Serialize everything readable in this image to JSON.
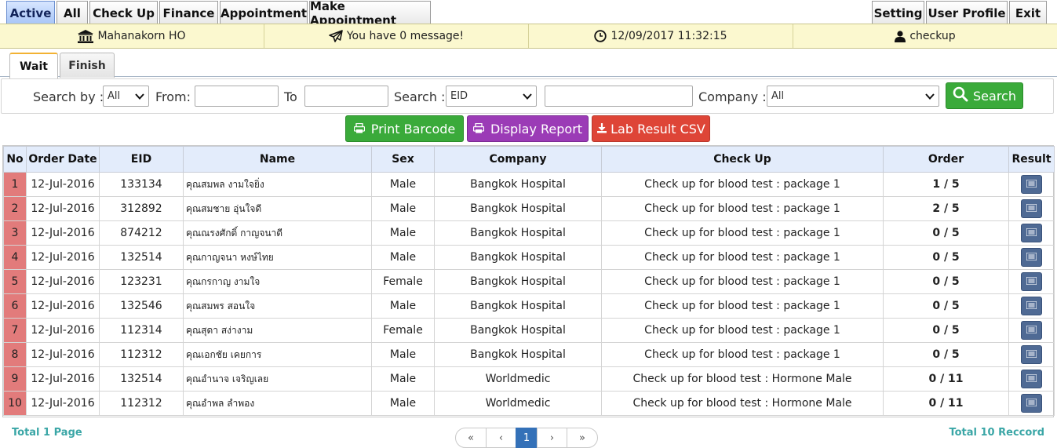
{
  "topnav": {
    "left": [
      "Active",
      "All",
      "Check Up",
      "Finance",
      "Appointment",
      "Make Appointment"
    ],
    "right": [
      "Setting",
      "User Profile",
      "Exit"
    ]
  },
  "infobar": {
    "branch": "Mahanakorn HO",
    "message": "You have 0 message!",
    "datetime": "12/09/2017 11:32:15",
    "user": "checkup"
  },
  "subtabs": [
    "Wait",
    "Finish"
  ],
  "search": {
    "search_by_label": "Search by :",
    "search_by_value": "All",
    "from_label": "From:",
    "from_value": "",
    "to_label": "To",
    "to_value": "",
    "search_label": "Search :",
    "search_field_value": "EID",
    "search_text_value": "",
    "company_label": "Company :",
    "company_value": "All",
    "button_label": "Search"
  },
  "actions": {
    "print_barcode": "Print Barcode",
    "display_report": "Display Report",
    "lab_result_csv": "Lab Result CSV"
  },
  "table": {
    "headers": [
      "No",
      "Order Date",
      "EID",
      "Name",
      "Sex",
      "Company",
      "Check Up",
      "Order",
      "Result"
    ],
    "rows": [
      {
        "no": "1",
        "date": "12-Jul-2016",
        "eid": "133134",
        "name": "คุณสมพล งามใจยิ่ง",
        "sex": "Male",
        "company": "Bangkok Hospital",
        "checkup": "Check up for blood test : package 1",
        "order": "1 / 5"
      },
      {
        "no": "2",
        "date": "12-Jul-2016",
        "eid": "312892",
        "name": "คุณสมชาย อุ่นใจดี",
        "sex": "Male",
        "company": "Bangkok Hospital",
        "checkup": "Check up for blood test : package 1",
        "order": "2 / 5"
      },
      {
        "no": "3",
        "date": "12-Jul-2016",
        "eid": "874212",
        "name": "คุณณรงศักดิ์ กาญจนาดี",
        "sex": "Male",
        "company": "Bangkok Hospital",
        "checkup": "Check up for blood test : package 1",
        "order": "0 / 5"
      },
      {
        "no": "4",
        "date": "12-Jul-2016",
        "eid": "132514",
        "name": "คุณกาญจนา หงษ์ไทย",
        "sex": "Male",
        "company": "Bangkok Hospital",
        "checkup": "Check up for blood test : package 1",
        "order": "0 / 5"
      },
      {
        "no": "5",
        "date": "12-Jul-2016",
        "eid": "123231",
        "name": "คุณกรกาญ งามใจ",
        "sex": "Female",
        "company": "Bangkok Hospital",
        "checkup": "Check up for blood test : package 1",
        "order": "0 / 5"
      },
      {
        "no": "6",
        "date": "12-Jul-2016",
        "eid": "132546",
        "name": "คุณสมพร สอนใจ",
        "sex": "Male",
        "company": "Bangkok Hospital",
        "checkup": "Check up for blood test : package 1",
        "order": "0 / 5"
      },
      {
        "no": "7",
        "date": "12-Jul-2016",
        "eid": "112314",
        "name": "คุณสุดา สง่างาม",
        "sex": "Female",
        "company": "Bangkok Hospital",
        "checkup": "Check up for blood test : package 1",
        "order": "0 / 5"
      },
      {
        "no": "8",
        "date": "12-Jul-2016",
        "eid": "112312",
        "name": "คุณเอกชัย เคยการ",
        "sex": "Male",
        "company": "Bangkok Hospital",
        "checkup": "Check up for blood test : package 1",
        "order": "0 / 5"
      },
      {
        "no": "9",
        "date": "12-Jul-2016",
        "eid": "132514",
        "name": "คุณอำนาจ เจริญเลย",
        "sex": "Male",
        "company": "Worldmedic",
        "checkup": "Check up for blood test : Hormone Male",
        "order": "0 / 11"
      },
      {
        "no": "10",
        "date": "12-Jul-2016",
        "eid": "112312",
        "name": "คุณอำพล ลำพอง",
        "sex": "Male",
        "company": "Worldmedic",
        "checkup": "Check up for blood test : Hormone Male",
        "order": "0 / 11"
      }
    ]
  },
  "footer": {
    "total_pages": "Total 1 Page",
    "total_records": "Total 10 Reccord",
    "pager": [
      "«",
      "‹",
      "1",
      "›",
      "»"
    ]
  },
  "icons": {
    "branch": "bank-icon",
    "message": "paper-plane-icon",
    "datetime": "clock-icon",
    "user": "user-icon",
    "search": "search-icon",
    "print": "print-icon",
    "download": "download-icon",
    "result": "list-icon"
  },
  "colors": {
    "active_tab": "#a9c6f7",
    "info_bar": "#fbf8cf",
    "row_number": "#e27b7b",
    "header_row": "#e3ecfb",
    "green_button": "#3aaa3a",
    "purple_button": "#9b3bb6",
    "red_button": "#de4537",
    "result_button": "#4f6a94",
    "pager_active": "#3471b8",
    "footer_text": "#3aa6a6"
  }
}
